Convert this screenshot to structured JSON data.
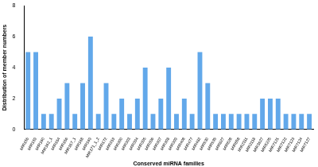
{
  "chart_data": {
    "type": "bar",
    "x_label": "Conserved miRNA families",
    "y_label": "Distribution of member numbers",
    "categories": [
      "MIR156",
      "MIR159",
      "MIR160",
      "MIR162_1",
      "MIR164",
      "MIR166",
      "MIR167_1",
      "MIR168",
      "MIR169",
      "MIR171_1_2",
      "MIR172",
      "MIR319",
      "MIR390",
      "MIR393",
      "MIR394",
      "MIR395",
      "MIR396",
      "MIR397",
      "MIR398",
      "MIR399",
      "MIR408",
      "MIR477",
      "MIR482",
      "MIR530",
      "MIR535",
      "MIR827",
      "MIR828",
      "MIR858",
      "MIR2111",
      "MIR2118",
      "MIR3627",
      "MIR5225",
      "MIR7121",
      "MIR7122",
      "MIR7123",
      "MIR7124",
      "MIR7127"
    ],
    "values": [
      5,
      5,
      1,
      1,
      2,
      3,
      1,
      3,
      6,
      1,
      3,
      1,
      2,
      1,
      2,
      4,
      1,
      2,
      4,
      1,
      2,
      1,
      5,
      3,
      1,
      1,
      1,
      1,
      1,
      1,
      2,
      2,
      2,
      1,
      1,
      1,
      1
    ],
    "color": "#62a8ea",
    "ylim": [
      0,
      8
    ],
    "yticks": [
      0,
      2,
      4,
      6,
      8
    ],
    "grid": false
  }
}
